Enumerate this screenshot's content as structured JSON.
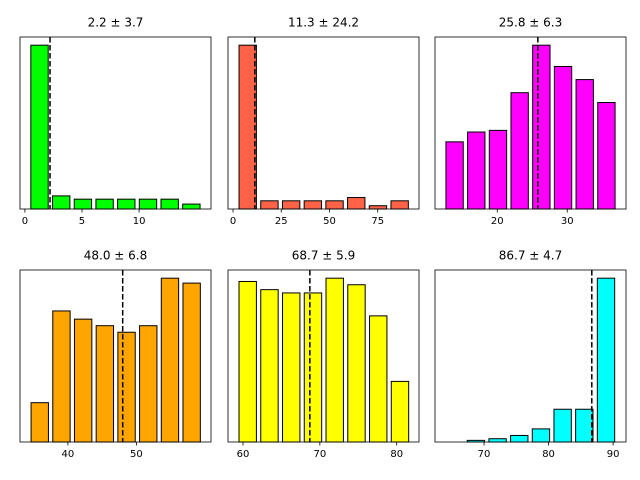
{
  "chart_data": [
    {
      "type": "histogram",
      "title": "2.2 ± 3.7",
      "color": "#00ff00",
      "bins": [
        0.33,
        2.23,
        4.13,
        6.03,
        7.93,
        9.83,
        11.73,
        13.63,
        15.53
      ],
      "counts": [
        100,
        8,
        6,
        6,
        6,
        6,
        6,
        3
      ],
      "mean": 2.2,
      "xlim": [
        -0.43,
        16.3
      ],
      "xticks": [
        0,
        5,
        10
      ],
      "ylim": [
        0,
        105
      ]
    },
    {
      "type": "histogram",
      "title": "11.3 ± 24.2",
      "color": "#ff6347",
      "bins": [
        2,
        13.25,
        24.5,
        35.75,
        47,
        58.25,
        69.5,
        80.75,
        92
      ],
      "counts": [
        100,
        5,
        5,
        5,
        5,
        7,
        2,
        5
      ],
      "mean": 11.3,
      "xlim": [
        -2.6,
        96.4
      ],
      "xticks": [
        0,
        25,
        50,
        75
      ],
      "ylim": [
        0,
        105
      ]
    },
    {
      "type": "histogram",
      "title": "25.8 ± 6.3",
      "color": "#ff00ff",
      "bins": [
        12.35,
        15.45,
        18.55,
        21.65,
        24.75,
        27.85,
        30.95,
        34.05,
        37.15
      ],
      "counts": [
        41,
        47,
        48,
        71,
        100,
        87,
        79,
        65
      ],
      "mean": 25.8,
      "xlim": [
        11.1,
        38.4
      ],
      "xticks": [
        20,
        30
      ],
      "ylim": [
        0,
        105
      ]
    },
    {
      "type": "histogram",
      "title": "48.0 ± 6.8",
      "color": "#ffa500",
      "bins": [
        34.3,
        37.47,
        40.64,
        43.81,
        46.98,
        50.15,
        53.32,
        56.49,
        59.66
      ],
      "counts": [
        24,
        80,
        75,
        71,
        67,
        71,
        100,
        97
      ],
      "mean": 48.0,
      "xlim": [
        33.0,
        60.9
      ],
      "xticks": [
        40,
        50
      ],
      "ylim": [
        0,
        105
      ]
    },
    {
      "type": "histogram",
      "title": "68.7 ± 5.9",
      "color": "#ffff00",
      "bins": [
        59.2,
        62.03,
        64.86,
        67.69,
        70.52,
        73.35,
        76.18,
        79.01,
        81.84
      ],
      "counts": [
        98,
        93,
        91,
        91,
        100,
        96,
        77,
        37
      ],
      "mean": 68.7,
      "xlim": [
        58.05,
        82.9
      ],
      "xticks": [
        60,
        70,
        80
      ],
      "ylim": [
        0,
        105
      ]
    },
    {
      "type": "histogram",
      "title": "86.7 ± 4.7",
      "color": "#00ffff",
      "bins": [
        63.7,
        67.06,
        70.42,
        73.78,
        77.14,
        80.5,
        83.86,
        87.22,
        90.58
      ],
      "counts": [
        0,
        1,
        2,
        4,
        8,
        20,
        20,
        100
      ],
      "mean": 86.7,
      "xlim": [
        62.4,
        92.0
      ],
      "xticks": [
        70,
        80,
        90
      ],
      "ylim": [
        0,
        105
      ]
    }
  ]
}
